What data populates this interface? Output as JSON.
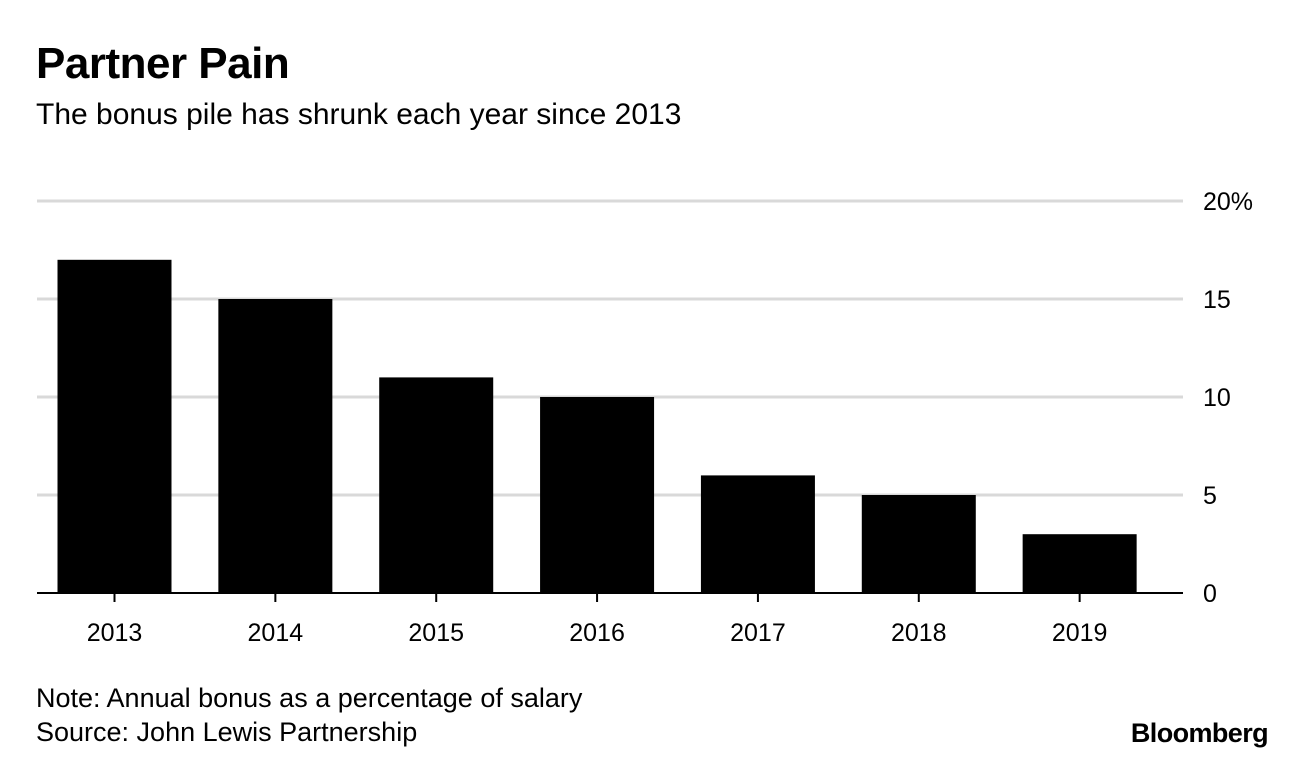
{
  "header": {
    "title": "Partner Pain",
    "subtitle": "The bonus pile has shrunk each year since 2013"
  },
  "footer": {
    "note": "Note: Annual bonus as a percentage of salary",
    "source": "Source: John Lewis Partnership",
    "brand": "Bloomberg"
  },
  "colors": {
    "bar": "#000000",
    "grid": "#d9d9d9",
    "baseline": "#000000"
  },
  "chart_data": {
    "type": "bar",
    "title": "Partner Pain",
    "subtitle": "The bonus pile has shrunk each year since 2013",
    "categories": [
      "2013",
      "2014",
      "2015",
      "2016",
      "2017",
      "2018",
      "2019"
    ],
    "values": [
      17,
      15,
      11,
      10,
      6,
      5,
      3
    ],
    "xlabel": "",
    "ylabel": "",
    "ylim": [
      0,
      20
    ],
    "yticks": [
      0,
      5,
      10,
      15,
      20
    ],
    "ytick_labels": [
      "0",
      "5",
      "10",
      "15",
      "20%"
    ],
    "grid": true,
    "y_axis_side": "right",
    "legend": "none"
  }
}
